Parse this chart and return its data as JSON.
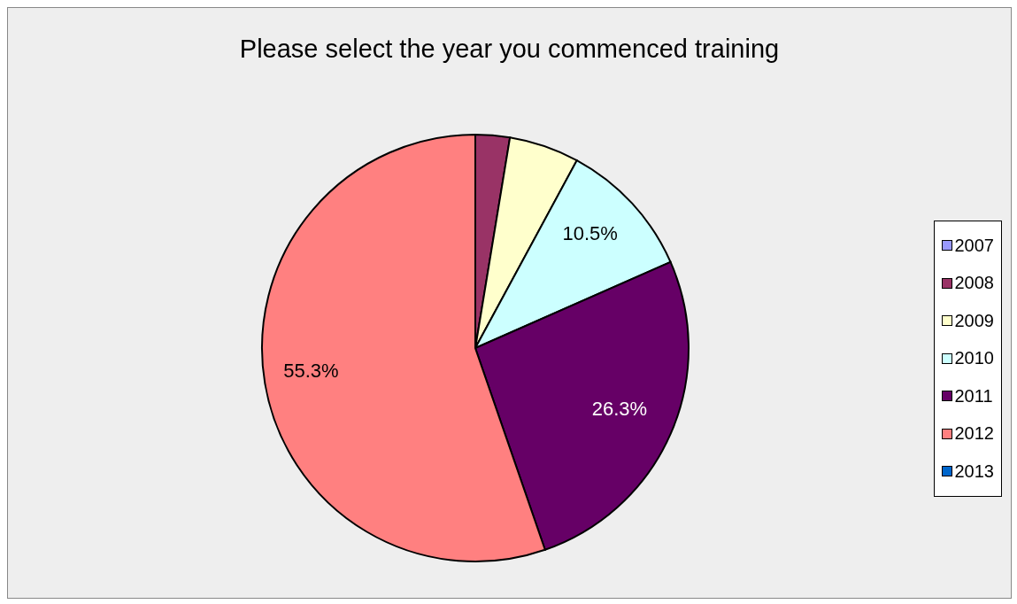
{
  "chart_data": {
    "type": "pie",
    "title": "Please select the year you commenced training",
    "categories": [
      "2007",
      "2008",
      "2009",
      "2010",
      "2011",
      "2012",
      "2013"
    ],
    "values": [
      0,
      2.6,
      5.3,
      10.5,
      26.3,
      55.3,
      0
    ],
    "value_labels": [
      null,
      null,
      null,
      "10.5%",
      "26.3%",
      "55.3%",
      null
    ],
    "colors": [
      "#9999ff",
      "#993366",
      "#ffffcc",
      "#ccffff",
      "#660066",
      "#ff8080",
      "#0066cc"
    ],
    "legend": "right"
  }
}
